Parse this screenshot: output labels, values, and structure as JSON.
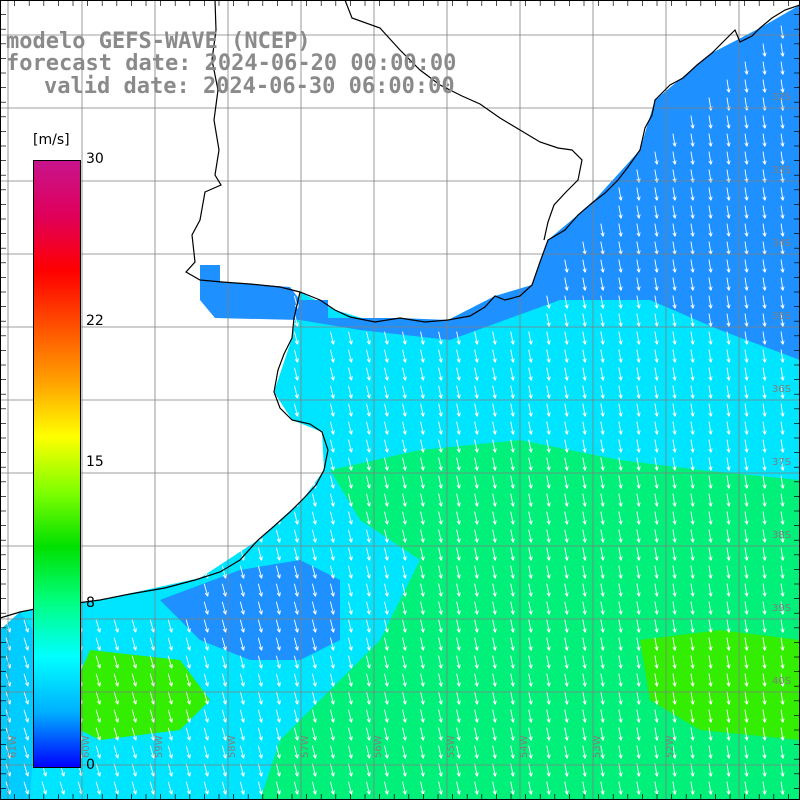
{
  "title": {
    "line1": "modelo GEFS-WAVE (NCEP)",
    "line2": "forecast date: 2024-06-20 00:00:00",
    "line3": "valid date: 2024-06-30 06:00:00"
  },
  "colorbar": {
    "unit_label": "[m/s]",
    "min": 0,
    "max": 30,
    "ticks": [
      {
        "value": 30,
        "label": "30"
      },
      {
        "value": 22,
        "label": "22"
      },
      {
        "value": 15,
        "label": "15"
      },
      {
        "value": 8,
        "label": "8"
      },
      {
        "value": 0,
        "label": "0"
      }
    ],
    "stops": [
      "#0000ff",
      "#00b0ff",
      "#00ffff",
      "#00ff80",
      "#00e000",
      "#80ff00",
      "#ffff00",
      "#ffa000",
      "#ff5000",
      "#ff0000",
      "#e0005a",
      "#c8148c"
    ]
  },
  "map": {
    "lat_labels": [
      "32S",
      "33S",
      "34S",
      "35S",
      "36S",
      "37S",
      "38S",
      "39S",
      "40S"
    ],
    "lon_labels": [
      "61W",
      "60W",
      "59W",
      "58W",
      "57W",
      "56W",
      "55W",
      "54W",
      "53W",
      "52W"
    ],
    "colors": {
      "land": "#ffffff",
      "grid": "#7f7f7f",
      "coast": "#000000",
      "arrow": "#ffffff",
      "ocean_blue": "#1e90ff",
      "ocean_cyan": "#00e5ff",
      "ocean_green": "#00f07a",
      "ocean_strong_green": "#33ee00"
    }
  }
}
